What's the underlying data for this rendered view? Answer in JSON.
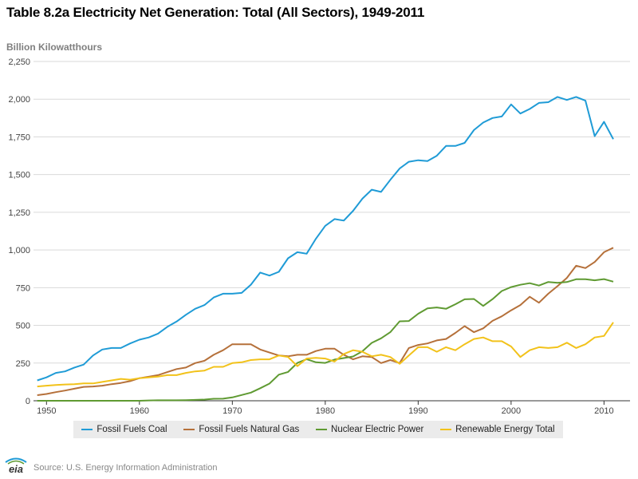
{
  "colors": {
    "coal": "#1f9bd6",
    "gas": "#b5703a",
    "nuclear": "#5f9a32",
    "renewable": "#f2c21a",
    "grid": "#d9d9d9",
    "axis": "#333333"
  },
  "chart_data": {
    "type": "line",
    "title": "Table 8.2a Electricity Net Generation: Total (All Sectors), 1949-2011",
    "ylabel": "Billion Kilowatthours",
    "xlabel": "",
    "xlim": [
      1949,
      2011
    ],
    "ylim": [
      0,
      2250
    ],
    "xticks": [
      1950,
      1960,
      1970,
      1980,
      1990,
      2000,
      2010
    ],
    "xtick_labels": [
      "1950",
      "1960",
      "1970",
      "1980",
      "1990",
      "2000",
      "2010"
    ],
    "yticks": [
      0,
      250,
      500,
      750,
      1000,
      1250,
      1500,
      1750,
      2000,
      2250
    ],
    "ytick_labels": [
      "0",
      "250",
      "500",
      "750",
      "1,000",
      "1,250",
      "1,500",
      "1,750",
      "2,000",
      "2,250"
    ],
    "grid": true,
    "legend_position": "bottom",
    "x": [
      1949,
      1950,
      1951,
      1952,
      1953,
      1954,
      1955,
      1956,
      1957,
      1958,
      1959,
      1960,
      1961,
      1962,
      1963,
      1964,
      1965,
      1966,
      1967,
      1968,
      1969,
      1970,
      1971,
      1972,
      1973,
      1974,
      1975,
      1976,
      1977,
      1978,
      1979,
      1980,
      1981,
      1982,
      1983,
      1984,
      1985,
      1986,
      1987,
      1988,
      1989,
      1990,
      1991,
      1992,
      1993,
      1994,
      1995,
      1996,
      1997,
      1998,
      1999,
      2000,
      2001,
      2002,
      2003,
      2004,
      2005,
      2006,
      2007,
      2008,
      2009,
      2010,
      2011
    ],
    "series": [
      {
        "name": "Fossil Fuels Coal",
        "color_key": "coal",
        "values": [
          135,
          155,
          185,
          195,
          220,
          240,
          300,
          340,
          350,
          350,
          380,
          405,
          420,
          445,
          490,
          525,
          570,
          610,
          635,
          685,
          710,
          710,
          715,
          770,
          850,
          830,
          855,
          945,
          985,
          975,
          1075,
          1160,
          1205,
          1195,
          1260,
          1340,
          1400,
          1385,
          1465,
          1540,
          1585,
          1595,
          1590,
          1625,
          1690,
          1690,
          1710,
          1795,
          1845,
          1875,
          1885,
          1965,
          1905,
          1935,
          1975,
          1980,
          2015,
          1995,
          2015,
          1990,
          1755,
          1850,
          1735
        ]
      },
      {
        "name": "Fossil Fuels Natural Gas",
        "color_key": "gas",
        "values": [
          37,
          45,
          57,
          68,
          80,
          92,
          95,
          100,
          110,
          118,
          130,
          150,
          160,
          170,
          190,
          210,
          220,
          250,
          265,
          305,
          335,
          375,
          375,
          375,
          340,
          320,
          300,
          295,
          305,
          305,
          330,
          345,
          345,
          305,
          275,
          295,
          290,
          250,
          270,
          250,
          350,
          370,
          380,
          400,
          410,
          450,
          495,
          455,
          480,
          530,
          560,
          600,
          635,
          690,
          650,
          710,
          760,
          815,
          895,
          880,
          920,
          985,
          1015
        ]
      },
      {
        "name": "Nuclear Electric Power",
        "color_key": "nuclear",
        "values": [
          0,
          0,
          0,
          0,
          0,
          0,
          0,
          0,
          0,
          0,
          0,
          0,
          2,
          3,
          3,
          3,
          4,
          6,
          8,
          13,
          14,
          22,
          38,
          54,
          83,
          114,
          173,
          191,
          251,
          276,
          255,
          251,
          273,
          283,
          294,
          328,
          384,
          414,
          455,
          527,
          529,
          577,
          613,
          619,
          610,
          640,
          673,
          675,
          629,
          674,
          728,
          754,
          769,
          780,
          764,
          788,
          782,
          787,
          806,
          806,
          799,
          807,
          790
        ]
      },
      {
        "name": "Renewable Energy Total",
        "color_key": "renewable",
        "values": [
          95,
          100,
          105,
          108,
          110,
          115,
          115,
          125,
          135,
          145,
          140,
          150,
          155,
          160,
          170,
          170,
          185,
          195,
          200,
          225,
          225,
          250,
          255,
          270,
          275,
          275,
          300,
          290,
          230,
          280,
          285,
          280,
          260,
          310,
          335,
          325,
          295,
          305,
          290,
          245,
          300,
          355,
          355,
          325,
          355,
          335,
          375,
          410,
          420,
          395,
          395,
          360,
          290,
          335,
          355,
          350,
          355,
          385,
          350,
          375,
          420,
          430,
          520
        ]
      }
    ]
  },
  "source": "Source: U.S. Energy Information Administration",
  "logo_text": "eia"
}
